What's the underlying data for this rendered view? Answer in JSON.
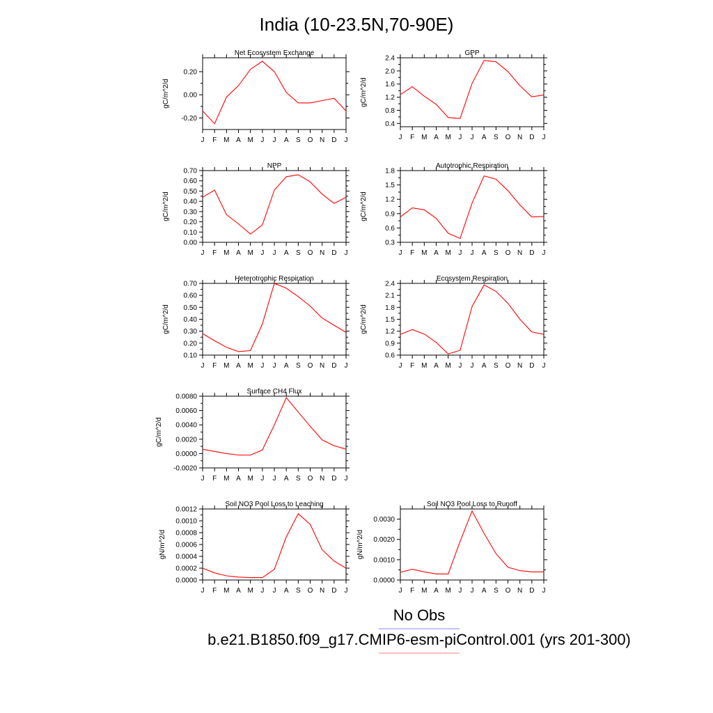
{
  "figure": {
    "title": "India (10-23.5N,70-90E)",
    "line_color": "#ff0000",
    "obs_color": "#8080ff"
  },
  "legend": {
    "entries": [
      {
        "label": "No Obs",
        "color": "#8080ff"
      },
      {
        "label": "b.e21.B1850.f09_g17.CMIP6-esm-piControl.001 (yrs 201-300)",
        "color": "#ff8080"
      }
    ]
  },
  "chart_data": [
    {
      "type": "line",
      "title": "Net Ecosystem Exchange",
      "ylabel": "gC/m^2/d",
      "x": [
        "J",
        "F",
        "M",
        "A",
        "M",
        "J",
        "J",
        "A",
        "S",
        "O",
        "N",
        "D",
        "J"
      ],
      "ylim": [
        -0.3,
        0.32
      ],
      "yticks": [
        -0.2,
        0.0,
        0.2
      ],
      "ytick_labels": [
        "-0.20",
        "0.00",
        "0.20"
      ],
      "series": [
        {
          "values": [
            -0.14,
            -0.25,
            -0.02,
            0.08,
            0.22,
            0.29,
            0.2,
            0.02,
            -0.07,
            -0.07,
            -0.05,
            -0.03,
            -0.14
          ]
        }
      ]
    },
    {
      "type": "line",
      "title": "GPP",
      "ylabel": "gC/m^2/d",
      "x": [
        "J",
        "F",
        "M",
        "A",
        "M",
        "J",
        "J",
        "A",
        "S",
        "O",
        "N",
        "D",
        "J"
      ],
      "ylim": [
        0.3,
        2.4
      ],
      "yticks": [
        0.4,
        0.8,
        1.2,
        1.6,
        2.0,
        2.4
      ],
      "ytick_labels": [
        "0.4",
        "0.8",
        "1.2",
        "1.6",
        "2.0",
        "2.4"
      ],
      "series": [
        {
          "values": [
            1.28,
            1.52,
            1.23,
            0.98,
            0.58,
            0.55,
            1.62,
            2.32,
            2.28,
            1.98,
            1.55,
            1.21,
            1.27
          ]
        }
      ]
    },
    {
      "type": "line",
      "title": "NPP",
      "ylabel": "gC/m^2/d",
      "x": [
        "J",
        "F",
        "M",
        "A",
        "M",
        "J",
        "J",
        "A",
        "S",
        "O",
        "N",
        "D",
        "J"
      ],
      "ylim": [
        0.0,
        0.7
      ],
      "yticks": [
        0.0,
        0.1,
        0.2,
        0.3,
        0.4,
        0.5,
        0.6,
        0.7
      ],
      "ytick_labels": [
        "0.00",
        "0.10",
        "0.20",
        "0.30",
        "0.40",
        "0.50",
        "0.60",
        "0.70"
      ],
      "series": [
        {
          "values": [
            0.44,
            0.51,
            0.27,
            0.18,
            0.08,
            0.17,
            0.51,
            0.64,
            0.66,
            0.59,
            0.47,
            0.38,
            0.44
          ]
        }
      ]
    },
    {
      "type": "line",
      "title": "Autotrophic Respiration",
      "ylabel": "gC/m^2/d",
      "x": [
        "J",
        "F",
        "M",
        "A",
        "M",
        "J",
        "J",
        "A",
        "S",
        "O",
        "N",
        "D",
        "J"
      ],
      "ylim": [
        0.3,
        1.8
      ],
      "yticks": [
        0.3,
        0.6,
        0.9,
        1.2,
        1.5,
        1.8
      ],
      "ytick_labels": [
        "0.3",
        "0.6",
        "0.9",
        "1.2",
        "1.5",
        "1.8"
      ],
      "series": [
        {
          "values": [
            0.83,
            1.02,
            0.98,
            0.8,
            0.49,
            0.38,
            1.12,
            1.69,
            1.62,
            1.38,
            1.08,
            0.83,
            0.84
          ]
        }
      ]
    },
    {
      "type": "line",
      "title": "Heterotrophic Respiration",
      "ylabel": "gC/m^2/d",
      "x": [
        "J",
        "F",
        "M",
        "A",
        "M",
        "J",
        "J",
        "A",
        "S",
        "O",
        "N",
        "D",
        "J"
      ],
      "ylim": [
        0.1,
        0.7
      ],
      "yticks": [
        0.1,
        0.2,
        0.3,
        0.4,
        0.5,
        0.6,
        0.7
      ],
      "ytick_labels": [
        "0.10",
        "0.20",
        "0.30",
        "0.40",
        "0.50",
        "0.60",
        "0.70"
      ],
      "series": [
        {
          "values": [
            0.28,
            0.22,
            0.165,
            0.13,
            0.138,
            0.36,
            0.7,
            0.66,
            0.59,
            0.51,
            0.41,
            0.35,
            0.29
          ]
        }
      ]
    },
    {
      "type": "line",
      "title": "Ecosystem Respiration",
      "ylabel": "gC/m^2/d",
      "x": [
        "J",
        "F",
        "M",
        "A",
        "M",
        "J",
        "J",
        "A",
        "S",
        "O",
        "N",
        "D",
        "J"
      ],
      "ylim": [
        0.6,
        2.4
      ],
      "yticks": [
        0.6,
        0.9,
        1.2,
        1.5,
        1.8,
        2.1,
        2.4
      ],
      "ytick_labels": [
        "0.6",
        "0.9",
        "1.2",
        "1.5",
        "1.8",
        "2.1",
        "2.4"
      ],
      "series": [
        {
          "values": [
            1.12,
            1.24,
            1.13,
            0.92,
            0.63,
            0.72,
            1.82,
            2.36,
            2.2,
            1.9,
            1.5,
            1.18,
            1.12
          ]
        }
      ]
    },
    {
      "type": "line",
      "title": "Surface CH4 Flux",
      "ylabel": "gC/m^2/d",
      "x": [
        "J",
        "F",
        "M",
        "A",
        "M",
        "J",
        "J",
        "A",
        "S",
        "O",
        "N",
        "D",
        "J"
      ],
      "ylim": [
        -0.002,
        0.008
      ],
      "yticks": [
        -0.002,
        0.0,
        0.002,
        0.004,
        0.006,
        0.008
      ],
      "ytick_labels": [
        "-0.0020",
        "0.0000",
        "0.0020",
        "0.0040",
        "0.0060",
        "0.0080"
      ],
      "series": [
        {
          "values": [
            0.0006,
            0.0003,
            0.0,
            -0.0002,
            -0.0002,
            0.0005,
            0.004,
            0.0078,
            0.0058,
            0.0038,
            0.0019,
            0.0011,
            0.0006
          ]
        }
      ]
    },
    {
      "type": "line",
      "title": "Soil NO3 Pool Loss to Leaching",
      "ylabel": "gN/m^2/d",
      "x": [
        "J",
        "F",
        "M",
        "A",
        "M",
        "J",
        "J",
        "A",
        "S",
        "O",
        "N",
        "D",
        "J"
      ],
      "ylim": [
        0.0,
        0.0012
      ],
      "yticks": [
        0.0,
        0.0002,
        0.0004,
        0.0006,
        0.0008,
        0.001,
        0.0012
      ],
      "ytick_labels": [
        "0.0000",
        "0.0002",
        "0.0004",
        "0.0006",
        "0.0008",
        "0.0010",
        "0.0012"
      ],
      "series": [
        {
          "values": [
            0.0002,
            0.00012,
            7e-05,
            5e-05,
            4e-05,
            4e-05,
            0.00018,
            0.00073,
            0.00112,
            0.00094,
            0.00051,
            0.00032,
            0.0002
          ]
        }
      ]
    },
    {
      "type": "line",
      "title": "Soil NO3 Pool Loss to Runoff",
      "ylabel": "gN/m^2/d",
      "x": [
        "J",
        "F",
        "M",
        "A",
        "M",
        "J",
        "J",
        "A",
        "S",
        "O",
        "N",
        "D",
        "J"
      ],
      "ylim": [
        0.0,
        0.0035
      ],
      "yticks": [
        0.0,
        0.001,
        0.002,
        0.003
      ],
      "ytick_labels": [
        "0.0000",
        "0.0010",
        "0.0020",
        "0.0030"
      ],
      "series": [
        {
          "values": [
            0.00038,
            0.00053,
            0.0004,
            0.0003,
            0.0003,
            0.0019,
            0.0034,
            0.0023,
            0.0013,
            0.00063,
            0.00046,
            0.0004,
            0.0004
          ]
        }
      ]
    }
  ]
}
